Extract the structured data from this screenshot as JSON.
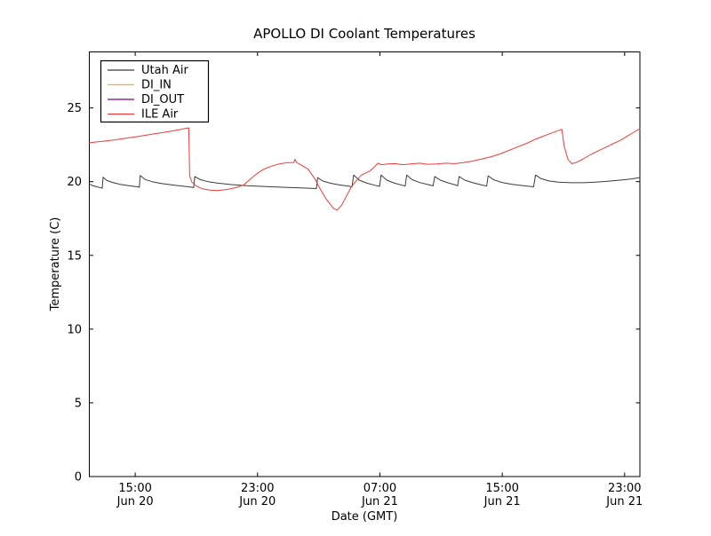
{
  "chart_data": {
    "type": "line",
    "title": "APOLLO DI Coolant Temperatures",
    "xlabel": "Date (GMT)",
    "ylabel": "Temperature (C)",
    "grid": false,
    "legend_position": "upper left",
    "axis_color": "#000000",
    "x_axis": {
      "unit": "hours offset from Jun 20 12:00 GMT",
      "range_hours": [
        0,
        36
      ],
      "ticks": [
        {
          "hour": 3,
          "time": "15:00",
          "date": "Jun 20"
        },
        {
          "hour": 11,
          "time": "23:00",
          "date": "Jun 20"
        },
        {
          "hour": 19,
          "time": "07:00",
          "date": "Jun 21"
        },
        {
          "hour": 27,
          "time": "15:00",
          "date": "Jun 21"
        },
        {
          "hour": 35,
          "time": "23:00",
          "date": "Jun 21"
        }
      ]
    },
    "y_axis": {
      "range": [
        0,
        28.8
      ],
      "ticks": [
        0,
        5,
        10,
        15,
        20,
        25
      ]
    },
    "series": [
      {
        "name": "Utah Air",
        "color": "#3a3a3a",
        "points": [
          [
            0,
            19.85
          ],
          [
            0.25,
            19.72
          ],
          [
            0.5,
            19.65
          ],
          [
            0.78,
            19.58
          ],
          [
            0.84,
            19.55
          ],
          [
            0.9,
            20.3
          ],
          [
            1.15,
            20.08
          ],
          [
            1.5,
            19.95
          ],
          [
            2.0,
            19.82
          ],
          [
            2.6,
            19.73
          ],
          [
            3.1,
            19.66
          ],
          [
            3.27,
            19.62
          ],
          [
            3.33,
            20.42
          ],
          [
            3.65,
            20.15
          ],
          [
            4.1,
            20.0
          ],
          [
            4.7,
            19.88
          ],
          [
            5.4,
            19.78
          ],
          [
            6.1,
            19.7
          ],
          [
            6.6,
            19.64
          ],
          [
            6.82,
            19.6
          ],
          [
            6.9,
            20.35
          ],
          [
            7.25,
            20.14
          ],
          [
            7.75,
            20.0
          ],
          [
            8.4,
            19.9
          ],
          [
            9.3,
            19.8
          ],
          [
            10.3,
            19.73
          ],
          [
            11.6,
            19.67
          ],
          [
            13.0,
            19.61
          ],
          [
            14.2,
            19.56
          ],
          [
            14.85,
            19.53
          ],
          [
            14.93,
            20.28
          ],
          [
            15.25,
            20.05
          ],
          [
            15.75,
            19.9
          ],
          [
            16.35,
            19.78
          ],
          [
            16.95,
            19.7
          ],
          [
            17.18,
            19.65
          ],
          [
            17.28,
            20.45
          ],
          [
            17.65,
            20.1
          ],
          [
            18.15,
            19.9
          ],
          [
            18.65,
            19.76
          ],
          [
            18.98,
            19.68
          ],
          [
            19.08,
            20.45
          ],
          [
            19.45,
            20.1
          ],
          [
            19.95,
            19.9
          ],
          [
            20.45,
            19.76
          ],
          [
            20.65,
            19.7
          ],
          [
            20.75,
            20.45
          ],
          [
            21.1,
            20.14
          ],
          [
            21.6,
            19.94
          ],
          [
            22.15,
            19.8
          ],
          [
            22.48,
            19.72
          ],
          [
            22.58,
            20.35
          ],
          [
            22.95,
            20.1
          ],
          [
            23.45,
            19.92
          ],
          [
            23.95,
            19.78
          ],
          [
            24.08,
            19.72
          ],
          [
            24.18,
            20.35
          ],
          [
            24.55,
            20.1
          ],
          [
            25.1,
            19.92
          ],
          [
            25.65,
            19.78
          ],
          [
            25.98,
            19.7
          ],
          [
            26.08,
            20.4
          ],
          [
            26.45,
            20.12
          ],
          [
            26.95,
            19.95
          ],
          [
            27.65,
            19.82
          ],
          [
            28.45,
            19.72
          ],
          [
            29.05,
            19.65
          ],
          [
            29.18,
            20.45
          ],
          [
            29.55,
            20.2
          ],
          [
            30.05,
            20.05
          ],
          [
            30.65,
            19.97
          ],
          [
            31.45,
            19.93
          ],
          [
            32.3,
            19.93
          ],
          [
            33.1,
            19.97
          ],
          [
            33.9,
            20.03
          ],
          [
            34.7,
            20.1
          ],
          [
            35.4,
            20.18
          ],
          [
            36,
            20.28
          ]
        ]
      },
      {
        "name": "DI_IN",
        "color": "#ffaa22",
        "points": []
      },
      {
        "name": "DI_OUT",
        "color": "#800080",
        "points": []
      },
      {
        "name": "ILE Air",
        "color": "#ee3b3b",
        "points": [
          [
            0,
            22.65
          ],
          [
            0.8,
            22.73
          ],
          [
            1.6,
            22.83
          ],
          [
            2.4,
            22.95
          ],
          [
            3.2,
            23.07
          ],
          [
            4.0,
            23.2
          ],
          [
            4.8,
            23.33
          ],
          [
            5.5,
            23.45
          ],
          [
            6.0,
            23.55
          ],
          [
            6.3,
            23.62
          ],
          [
            6.5,
            23.65
          ],
          [
            6.56,
            20.4
          ],
          [
            6.7,
            19.98
          ],
          [
            7.0,
            19.7
          ],
          [
            7.4,
            19.52
          ],
          [
            7.9,
            19.42
          ],
          [
            8.4,
            19.4
          ],
          [
            9.0,
            19.47
          ],
          [
            9.6,
            19.6
          ],
          [
            10.1,
            19.78
          ],
          [
            10.45,
            20.1
          ],
          [
            10.9,
            20.5
          ],
          [
            11.4,
            20.85
          ],
          [
            11.9,
            21.05
          ],
          [
            12.4,
            21.2
          ],
          [
            12.9,
            21.28
          ],
          [
            13.38,
            21.3
          ],
          [
            13.44,
            21.52
          ],
          [
            13.55,
            21.3
          ],
          [
            13.9,
            21.1
          ],
          [
            14.3,
            20.85
          ],
          [
            14.75,
            20.2
          ],
          [
            15.1,
            19.5
          ],
          [
            15.5,
            18.8
          ],
          [
            15.95,
            18.2
          ],
          [
            16.2,
            18.07
          ],
          [
            16.5,
            18.4
          ],
          [
            16.8,
            19.0
          ],
          [
            17.1,
            19.6
          ],
          [
            17.4,
            20.0
          ],
          [
            17.8,
            20.45
          ],
          [
            18.3,
            20.7
          ],
          [
            18.6,
            20.95
          ],
          [
            18.85,
            21.25
          ],
          [
            19.1,
            21.15
          ],
          [
            19.5,
            21.2
          ],
          [
            20.0,
            21.22
          ],
          [
            20.5,
            21.15
          ],
          [
            21.0,
            21.2
          ],
          [
            21.6,
            21.25
          ],
          [
            22.1,
            21.18
          ],
          [
            22.7,
            21.2
          ],
          [
            23.3,
            21.25
          ],
          [
            23.9,
            21.22
          ],
          [
            24.5,
            21.3
          ],
          [
            25.1,
            21.4
          ],
          [
            25.7,
            21.55
          ],
          [
            26.3,
            21.7
          ],
          [
            26.9,
            21.9
          ],
          [
            27.5,
            22.15
          ],
          [
            28.1,
            22.4
          ],
          [
            28.6,
            22.6
          ],
          [
            29.1,
            22.85
          ],
          [
            29.6,
            23.05
          ],
          [
            30.1,
            23.25
          ],
          [
            30.5,
            23.4
          ],
          [
            30.9,
            23.55
          ],
          [
            31.05,
            22.4
          ],
          [
            31.3,
            21.5
          ],
          [
            31.55,
            21.22
          ],
          [
            31.8,
            21.28
          ],
          [
            32.3,
            21.55
          ],
          [
            32.8,
            21.85
          ],
          [
            33.3,
            22.1
          ],
          [
            33.8,
            22.35
          ],
          [
            34.3,
            22.6
          ],
          [
            34.8,
            22.85
          ],
          [
            35.2,
            23.1
          ],
          [
            35.6,
            23.35
          ],
          [
            36,
            23.6
          ]
        ]
      }
    ]
  }
}
